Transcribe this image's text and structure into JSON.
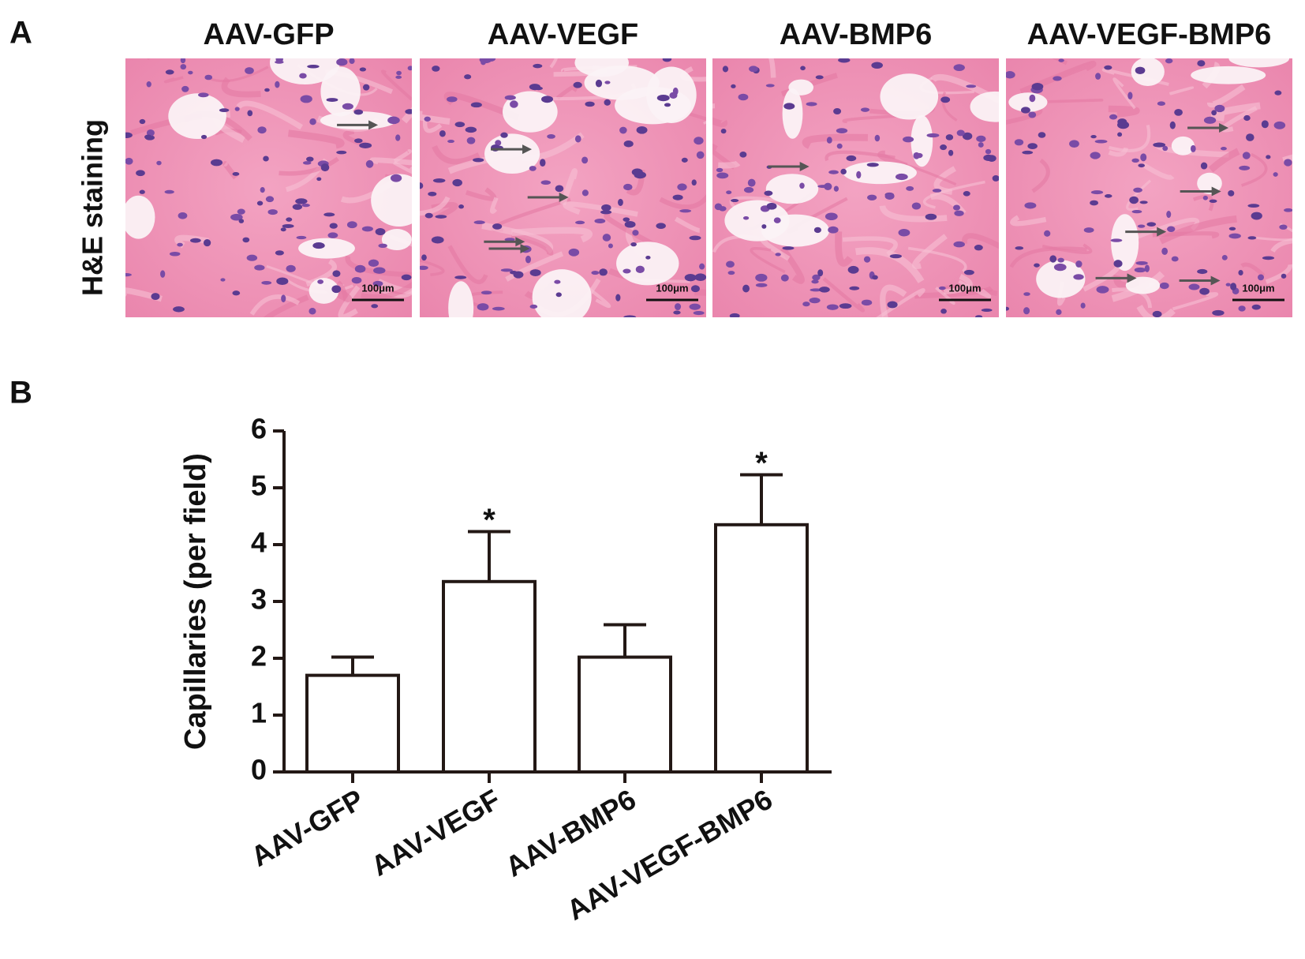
{
  "panel_a": {
    "label": "A",
    "row_label": "H&E staining",
    "columns": [
      "AAV-GFP",
      "AAV-VEGF",
      "AAV-BMP6",
      "AAV-VEGF-BMP6"
    ],
    "scale_bar": "100μm"
  },
  "chart_data": {
    "type": "bar",
    "label": "B",
    "ylabel": "Capillaries (per field)",
    "categories": [
      "AAV-GFP",
      "AAV-VEGF",
      "AAV-BMP6",
      "AAV-VEGF-BMP6"
    ],
    "values": [
      1.7,
      3.35,
      2.02,
      4.35
    ],
    "errors": [
      0.32,
      0.88,
      0.57,
      0.88
    ],
    "annotations": [
      {
        "category": "AAV-VEGF",
        "text": "*"
      },
      {
        "category": "AAV-VEGF-BMP6",
        "text": "*"
      }
    ],
    "color": "#ffffff",
    "edge_color": "#231815",
    "ylim": [
      0,
      6
    ],
    "yticks": [
      0,
      1,
      2,
      3,
      4,
      5,
      6
    ],
    "grid": false
  }
}
